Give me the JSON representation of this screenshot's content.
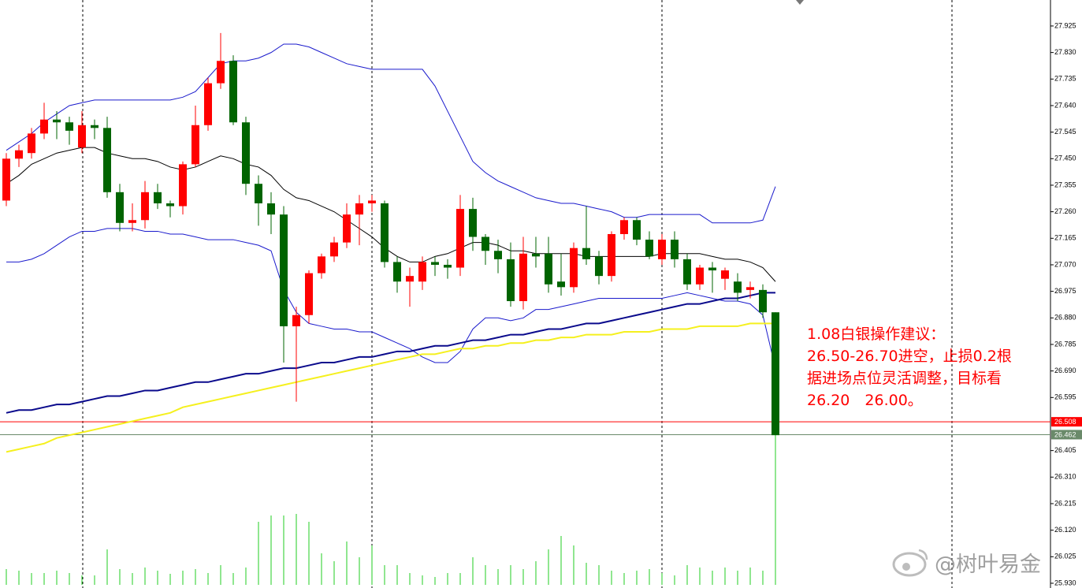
{
  "chart_data": {
    "type": "candlestick",
    "ylim": [
      25.913,
      28.018
    ],
    "yticks": [
      {
        "value": 27.925,
        "label": "27.925"
      },
      {
        "value": 27.83,
        "label": "27.830"
      },
      {
        "value": 27.735,
        "label": "27.735"
      },
      {
        "value": 27.64,
        "label": "27.640"
      },
      {
        "value": 27.545,
        "label": "27.545"
      },
      {
        "value": 27.45,
        "label": "27.450"
      },
      {
        "value": 27.355,
        "label": "27.355"
      },
      {
        "value": 27.26,
        "label": "27.260"
      },
      {
        "value": 27.165,
        "label": "27.165"
      },
      {
        "value": 27.07,
        "label": "27.070"
      },
      {
        "value": 26.975,
        "label": "26.975"
      },
      {
        "value": 26.88,
        "label": "26.880"
      },
      {
        "value": 26.785,
        "label": "26.785"
      },
      {
        "value": 26.69,
        "label": "26.690"
      },
      {
        "value": 26.595,
        "label": "26.595"
      },
      {
        "value": 26.405,
        "label": "26.405"
      },
      {
        "value": 26.31,
        "label": "26.310"
      },
      {
        "value": 26.215,
        "label": "26.215"
      },
      {
        "value": 26.12,
        "label": "26.120"
      },
      {
        "value": 26.025,
        "label": "26.025"
      },
      {
        "value": 25.93,
        "label": "25.930"
      }
    ],
    "up_color": "#ff0000",
    "down_color": "#006400",
    "volume_color": "#22cc22",
    "open": [
      27.3,
      27.45,
      27.47,
      27.54,
      27.59,
      27.58,
      27.49,
      27.57,
      27.56,
      27.33,
      27.22,
      27.23,
      27.33,
      27.29,
      27.28,
      27.43,
      27.57,
      27.72,
      27.8,
      27.58,
      27.36,
      27.29,
      27.25,
      26.85,
      26.89,
      27.04,
      27.1,
      27.15,
      27.25,
      27.29,
      27.29,
      27.08,
      27.01,
      27.01,
      27.08,
      27.07,
      27.06,
      27.27,
      27.17,
      27.12,
      27.09,
      26.94,
      27.11,
      27.11,
      27.01,
      26.99,
      27.13,
      27.1,
      27.03,
      27.18,
      27.23,
      27.16,
      27.09,
      27.16,
      27.09,
      27.0,
      27.06,
      27.02,
      27.01,
      26.98,
      26.98,
      26.9
    ],
    "high": [
      27.47,
      27.5,
      27.56,
      27.65,
      27.62,
      27.6,
      27.62,
      27.59,
      27.6,
      27.36,
      27.29,
      27.37,
      27.36,
      27.3,
      27.44,
      27.64,
      27.74,
      27.9,
      27.82,
      27.6,
      27.39,
      27.33,
      27.28,
      26.92,
      27.05,
      27.11,
      27.17,
      27.29,
      27.32,
      27.32,
      27.3,
      27.1,
      27.06,
      27.1,
      27.1,
      27.09,
      27.32,
      27.31,
      27.18,
      27.16,
      27.15,
      27.17,
      27.17,
      27.17,
      27.11,
      27.15,
      27.28,
      27.12,
      27.19,
      27.24,
      27.24,
      27.19,
      27.18,
      27.19,
      27.11,
      27.07,
      27.08,
      27.06,
      27.04,
      27.01,
      27.0,
      26.9
    ],
    "low": [
      27.28,
      27.42,
      27.45,
      27.52,
      27.52,
      27.5,
      27.47,
      27.52,
      27.31,
      27.19,
      27.19,
      27.2,
      27.27,
      27.24,
      27.25,
      27.42,
      27.55,
      27.7,
      27.57,
      27.32,
      27.21,
      27.18,
      26.72,
      26.58,
      26.86,
      27.02,
      27.08,
      27.13,
      27.14,
      27.26,
      27.06,
      26.97,
      26.92,
      26.98,
      27.03,
      27.02,
      27.03,
      27.12,
      27.07,
      27.04,
      26.92,
      26.91,
      27.06,
      26.97,
      26.96,
      26.97,
      27.07,
      27.0,
      27.01,
      27.16,
      27.14,
      27.09,
      27.07,
      27.06,
      26.98,
      26.98,
      26.97,
      26.98,
      26.94,
      26.95,
      26.88,
      26.46
    ],
    "close": [
      27.45,
      27.48,
      27.54,
      27.59,
      27.58,
      27.55,
      27.57,
      27.56,
      27.33,
      27.22,
      27.23,
      27.33,
      27.29,
      27.28,
      27.43,
      27.57,
      27.72,
      27.8,
      27.58,
      27.36,
      27.29,
      27.25,
      26.85,
      26.89,
      27.04,
      27.1,
      27.15,
      27.25,
      27.29,
      27.3,
      27.08,
      27.01,
      27.03,
      27.08,
      27.07,
      27.06,
      27.27,
      27.17,
      27.12,
      27.09,
      26.94,
      27.11,
      27.1,
      27.0,
      26.99,
      27.13,
      27.09,
      27.03,
      27.18,
      27.23,
      27.16,
      27.1,
      27.16,
      27.09,
      27.0,
      27.06,
      27.05,
      27.05,
      26.97,
      26.99,
      26.9,
      26.46
    ],
    "volume": [
      20,
      18,
      15,
      15,
      18,
      15,
      12,
      12,
      45,
      20,
      15,
      22,
      18,
      14,
      18,
      20,
      15,
      25,
      15,
      22,
      80,
      88,
      88,
      90,
      80,
      40,
      30,
      55,
      35,
      50,
      25,
      25,
      15,
      12,
      10,
      15,
      15,
      35,
      25,
      20,
      25,
      20,
      30,
      45,
      62,
      50,
      28,
      25,
      18,
      15,
      18,
      20,
      15,
      12,
      25,
      22,
      18,
      22,
      18,
      22,
      18,
      190
    ],
    "lines": [
      {
        "color": "#000000",
        "values": [
          27.36,
          27.39,
          27.43,
          27.45,
          27.47,
          27.48,
          27.49,
          27.49,
          27.47,
          27.46,
          27.45,
          27.45,
          27.44,
          27.42,
          27.41,
          27.42,
          27.44,
          27.46,
          27.45,
          27.43,
          27.42,
          27.39,
          27.34,
          27.31,
          27.3,
          27.28,
          27.26,
          27.23,
          27.2,
          27.17,
          27.13,
          27.1,
          27.08,
          27.08,
          27.1,
          27.11,
          27.13,
          27.15,
          27.15,
          27.14,
          27.12,
          27.12,
          27.11,
          27.11,
          27.11,
          27.11,
          27.1,
          27.1,
          27.1,
          27.1,
          27.1,
          27.1,
          27.11,
          27.11,
          27.11,
          27.11,
          27.1,
          27.09,
          27.09,
          27.08,
          27.06,
          27.01
        ]
      },
      {
        "color": "#1a1acc",
        "values": [
          27.48,
          27.51,
          27.54,
          27.58,
          27.61,
          27.64,
          27.65,
          27.66,
          27.66,
          27.66,
          27.66,
          27.66,
          27.66,
          27.66,
          27.67,
          27.69,
          27.74,
          27.79,
          27.8,
          27.8,
          27.81,
          27.83,
          27.86,
          27.86,
          27.85,
          27.83,
          27.81,
          27.79,
          27.78,
          27.77,
          27.77,
          27.77,
          27.77,
          27.77,
          27.71,
          27.62,
          27.53,
          27.44,
          27.4,
          27.37,
          27.35,
          27.33,
          27.31,
          27.3,
          27.29,
          27.29,
          27.28,
          27.27,
          27.26,
          27.24,
          27.24,
          27.25,
          27.25,
          27.25,
          27.25,
          27.25,
          27.22,
          27.22,
          27.22,
          27.22,
          27.23,
          27.35
        ]
      },
      {
        "color": "#1a1acc",
        "values": [
          27.08,
          27.08,
          27.09,
          27.11,
          27.14,
          27.17,
          27.19,
          27.19,
          27.2,
          27.2,
          27.2,
          27.19,
          27.19,
          27.18,
          27.18,
          27.17,
          27.16,
          27.16,
          27.16,
          27.15,
          27.14,
          27.12,
          26.98,
          26.9,
          26.86,
          26.85,
          26.84,
          26.84,
          26.83,
          26.83,
          26.81,
          26.79,
          26.77,
          26.74,
          26.72,
          26.72,
          26.76,
          26.84,
          26.88,
          26.88,
          26.87,
          26.88,
          26.91,
          26.91,
          26.92,
          26.93,
          26.94,
          26.95,
          26.95,
          26.95,
          26.95,
          26.95,
          26.95,
          26.96,
          26.97,
          26.96,
          26.95,
          26.94,
          26.94,
          26.93,
          26.89,
          26.7
        ]
      },
      {
        "color": "#0a0a8c",
        "width": 2,
        "values": [
          26.54,
          26.55,
          26.55,
          26.56,
          26.57,
          26.57,
          26.58,
          26.59,
          26.6,
          26.6,
          26.61,
          26.62,
          26.62,
          26.63,
          26.64,
          26.65,
          26.65,
          26.66,
          26.67,
          26.68,
          26.68,
          26.69,
          26.7,
          26.7,
          26.71,
          26.72,
          26.72,
          26.73,
          26.74,
          26.74,
          26.75,
          26.76,
          26.76,
          26.77,
          26.78,
          26.78,
          26.79,
          26.8,
          26.8,
          26.81,
          26.82,
          26.82,
          26.83,
          26.84,
          26.84,
          26.85,
          26.86,
          26.86,
          26.87,
          26.88,
          26.89,
          26.9,
          26.91,
          26.92,
          26.93,
          26.93,
          26.94,
          26.95,
          26.95,
          26.96,
          26.97,
          26.97
        ]
      },
      {
        "color": "#f5f01e",
        "width": 2,
        "values": [
          26.4,
          26.41,
          26.42,
          26.43,
          26.45,
          26.46,
          26.47,
          26.48,
          26.49,
          26.5,
          26.51,
          26.52,
          26.53,
          26.54,
          26.56,
          26.57,
          26.58,
          26.59,
          26.6,
          26.61,
          26.62,
          26.63,
          26.64,
          26.65,
          26.66,
          26.67,
          26.68,
          26.69,
          26.7,
          26.71,
          26.72,
          26.73,
          26.74,
          26.75,
          26.75,
          26.76,
          26.77,
          26.77,
          26.78,
          26.78,
          26.79,
          26.79,
          26.8,
          26.8,
          26.81,
          26.81,
          26.82,
          26.82,
          26.82,
          26.83,
          26.83,
          26.83,
          26.84,
          26.84,
          26.84,
          26.85,
          26.85,
          26.85,
          26.85,
          26.86,
          26.86,
          26.86
        ]
      }
    ],
    "price_lines": [
      {
        "value": 26.508,
        "color": "#ff0000"
      },
      {
        "value": 26.462,
        "color": "#6a8a6a"
      }
    ],
    "annotation": [
      "1.08白银操作建议：",
      "26.50-26.70进空，止损0.2根",
      "据进场点位灵活调整，目标看",
      "26.20　26.00。"
    ],
    "watermark": "@树叶易金"
  }
}
